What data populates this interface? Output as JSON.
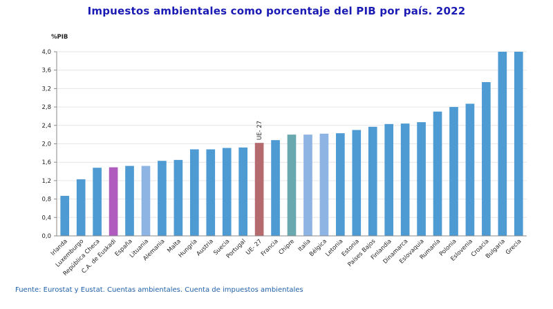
{
  "title": "Impuestos ambientales como porcentaje del PIB por país. 2022",
  "source": "Fuente: Eurostat y Eustat. Cuentas ambientales. Cuenta de impuestos ambientales",
  "chart_data": {
    "type": "bar",
    "ylabel": "%PIB",
    "ylim": [
      0,
      4.0
    ],
    "yticks": [
      "0,0",
      "0,4",
      "0,8",
      "1,2",
      "1,6",
      "2,0",
      "2,4",
      "2,8",
      "3,2",
      "3,6",
      "4,0"
    ],
    "grid": true,
    "categories": [
      "Irlanda",
      "Luxemburgo",
      "República Checa",
      "C.A. de Euskadi",
      "España",
      "Lituania",
      "Alemania",
      "Malta",
      "Hungría",
      "Austria",
      "Suecia",
      "Portugal",
      "UE- 27",
      "Francia",
      "Chipre",
      "Italia",
      "Bélgica",
      "Letonia",
      "Estonia",
      "Países Bajos",
      "Finlandia",
      "Dinamarca",
      "Eslovaquia",
      "Rumanía",
      "Polonia",
      "Eslovenia",
      "Croacia",
      "Bulgaria",
      "Grecia"
    ],
    "values": [
      0.87,
      1.23,
      1.48,
      1.49,
      1.52,
      1.52,
      1.63,
      1.65,
      1.88,
      1.88,
      1.91,
      1.92,
      2.02,
      2.08,
      2.2,
      2.2,
      2.22,
      2.23,
      2.3,
      2.37,
      2.43,
      2.44,
      2.47,
      2.7,
      2.8,
      2.87,
      3.34,
      4.0,
      4.0
    ],
    "colors": {
      "default": "#4e9bd4",
      "C.A. de Euskadi": "#b05cbf",
      "Lituania": "#8eb4e3",
      "UE- 27": "#b56a6e",
      "Chipre": "#6aa8b0",
      "Italia": "#8eb4e3",
      "Bélgica": "#8eb4e3"
    },
    "annotations": [
      {
        "category": "UE- 27",
        "text": "UE- 27"
      }
    ]
  }
}
